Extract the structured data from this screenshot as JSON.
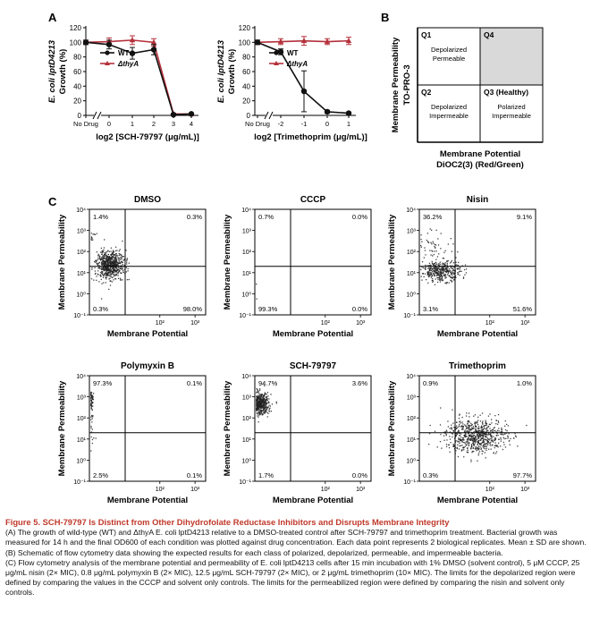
{
  "panel_labels": {
    "a": "A",
    "b": "B",
    "c": "C"
  },
  "chart_data": [
    {
      "type": "line",
      "panel": "A",
      "ylabel": "E. coli lptD4213 Growth (%)",
      "xlabel": "log2 [SCH-79797 (μg/mL)]",
      "x_tick_labels": [
        "No Drug",
        "0",
        "1",
        "2",
        "3",
        "4"
      ],
      "x": [
        "No Drug",
        0,
        1,
        2,
        3,
        4
      ],
      "ylim": [
        0,
        120
      ],
      "yticks": [
        0,
        20,
        40,
        60,
        80,
        100,
        120
      ],
      "axis_break": true,
      "series": [
        {
          "name": "WT",
          "color": "#111111",
          "values": [
            100,
            97,
            85,
            90,
            1,
            2
          ],
          "err": [
            3,
            6,
            8,
            7,
            1,
            1
          ]
        },
        {
          "name": "ΔthyA",
          "color": "#b5303a",
          "values": [
            100,
            101,
            103,
            100,
            2,
            2
          ],
          "err": [
            3,
            5,
            6,
            5,
            1,
            1
          ]
        }
      ]
    },
    {
      "type": "line",
      "panel": "A",
      "ylabel": "E. coli lptD4213 Growth (%)",
      "xlabel": "log2 [Trimethoprim (μg/mL)]",
      "x_tick_labels": [
        "No Drug",
        "-2",
        "-1",
        "0",
        "1"
      ],
      "x": [
        "No Drug",
        -2,
        -1,
        0,
        1
      ],
      "ylim": [
        0,
        120
      ],
      "yticks": [
        0,
        20,
        40,
        60,
        80,
        100,
        120
      ],
      "axis_break": true,
      "series": [
        {
          "name": "WT",
          "color": "#111111",
          "values": [
            100,
            87,
            33,
            5,
            3
          ],
          "err": [
            3,
            4,
            28,
            2,
            1
          ]
        },
        {
          "name": "ΔthyA",
          "color": "#b5303a",
          "values": [
            100,
            101,
            102,
            101,
            102
          ],
          "err": [
            3,
            4,
            6,
            4,
            5
          ]
        }
      ]
    },
    {
      "type": "scatter",
      "panel": "C",
      "title": "DMSO",
      "xlabel": "Membrane Potential",
      "ylabel": "Membrane Permeability",
      "quadrant_percent": {
        "Q1": "1.4%",
        "Q4": "0.3%",
        "Q2": "0.3%",
        "Q3": "98.0%"
      },
      "populations": [
        {
          "center": [
            3.8,
            25
          ],
          "spread": [
            1.6,
            2.2
          ],
          "count": 680
        },
        {
          "center": [
            1.0,
            600
          ],
          "spread": [
            1.25,
            1.7
          ],
          "count": 28
        }
      ]
    },
    {
      "type": "scatter",
      "panel": "C",
      "title": "CCCP",
      "xlabel": "Membrane Potential",
      "ylabel": "Membrane Permeability",
      "quadrant_percent": {
        "Q1": "0.7%",
        "Q4": "0.0%",
        "Q2": "99.3%",
        "Q3": "0.0%"
      },
      "populations": [
        {
          "center": [
            0.7,
            2.0
          ],
          "spread": [
            1.15,
            2.0
          ],
          "count": 520
        },
        {
          "center": [
            0.75,
            120
          ],
          "spread": [
            1.2,
            2.5
          ],
          "count": 12
        }
      ]
    },
    {
      "type": "scatter",
      "panel": "C",
      "title": "Nisin",
      "xlabel": "Membrane Potential",
      "ylabel": "Membrane Permeability",
      "quadrant_percent": {
        "Q1": "36.2%",
        "Q4": "9.1%",
        "Q2": "3.1%",
        "Q3": "51.6%"
      },
      "populations": [
        {
          "center": [
            0.65,
            80
          ],
          "spread": [
            1.15,
            2.5
          ],
          "count": 300
        },
        {
          "center": [
            4.0,
            12
          ],
          "spread": [
            1.9,
            1.7
          ],
          "count": 380
        },
        {
          "center": [
            2.0,
            220
          ],
          "spread": [
            2.2,
            2.4
          ],
          "count": 70
        }
      ]
    },
    {
      "type": "scatter",
      "panel": "C",
      "title": "Polymyxin B",
      "xlabel": "Membrane Potential",
      "ylabel": "Membrane Permeability",
      "quadrant_percent": {
        "Q1": "97.3%",
        "Q4": "0.1%",
        "Q2": "2.5%",
        "Q3": "0.1%"
      },
      "populations": [
        {
          "center": [
            0.9,
            900
          ],
          "spread": [
            1.15,
            1.5
          ],
          "count": 300
        },
        {
          "center": [
            0.9,
            150
          ],
          "spread": [
            1.15,
            2.2
          ],
          "count": 140
        },
        {
          "center": [
            1.0,
            10
          ],
          "spread": [
            1.2,
            1.6
          ],
          "count": 15
        }
      ]
    },
    {
      "type": "scatter",
      "panel": "C",
      "title": "SCH-79797",
      "xlabel": "Membrane Potential",
      "ylabel": "Membrane Permeability",
      "quadrant_percent": {
        "Q1": "94.7%",
        "Q4": "3.6%",
        "Q2": "1.7%",
        "Q3": "0.0%"
      },
      "populations": [
        {
          "center": [
            1.2,
            500
          ],
          "spread": [
            1.4,
            1.8
          ],
          "count": 620
        },
        {
          "center": [
            0.45,
            500
          ],
          "spread": [
            1.3,
            2.0
          ],
          "count": 30
        },
        {
          "center": [
            2.0,
            400
          ],
          "spread": [
            1.2,
            1.5
          ],
          "count": 30
        }
      ]
    },
    {
      "type": "scatter",
      "panel": "C",
      "title": "Trimethoprim",
      "xlabel": "Membrane Potential",
      "ylabel": "Membrane Permeability",
      "quadrant_percent": {
        "Q1": "0.9%",
        "Q4": "1.0%",
        "Q2": "0.3%",
        "Q3": "97.7%"
      },
      "populations": [
        {
          "center": [
            40,
            15
          ],
          "spread": [
            2.7,
            2.6
          ],
          "count": 700
        },
        {
          "center": [
            0.6,
            900
          ],
          "spread": [
            1.15,
            1.6
          ],
          "count": 16
        }
      ]
    }
  ],
  "schematic": {
    "y_title_1": "Membrane Permeability",
    "y_title_2": "TO-PRO-3",
    "x_title_1": "Membrane Potential",
    "x_title_2": "DiOC2(3) (Red/Green)",
    "quadrants": [
      {
        "id": "Q1",
        "label": "Q1",
        "desc_1": "Depolarized",
        "desc_2": "Permeable",
        "fill": "#ffffff"
      },
      {
        "id": "Q4",
        "label": "Q4",
        "desc_1": "",
        "desc_2": "",
        "fill": "#d9d9d9"
      },
      {
        "id": "Q2",
        "label": "Q2",
        "desc_1": "Depolarized",
        "desc_2": "Impermeable",
        "fill": "#ffffff"
      },
      {
        "id": "Q3",
        "label": "Q3 (Healthy)",
        "desc_1": "Polarized",
        "desc_2": "Impermeable",
        "fill": "#ffffff"
      }
    ]
  },
  "flow_axes": {
    "x_ticks": [
      "10²",
      "10³"
    ],
    "y_ticks": [
      "10⁻¹",
      "10⁰",
      "10¹",
      "10²",
      "10³",
      "10⁴"
    ]
  },
  "caption": {
    "title": "Figure 5. SCH-79797 Is Distinct from Other Dihydrofolate Reductase Inhibitors and Disrupts Membrane Integrity",
    "a": "(A) The growth of wild-type (WT) and ΔthyA E. coli lptD4213 relative to a DMSO-treated control after SCH-79797 and trimethoprim treatment. Bacterial growth was measured for 14 h and the final OD600 of each condition was plotted against drug concentration. Each data point represents 2 biological replicates. Mean ± SD are shown.",
    "b": "(B) Schematic of flow cytometry data showing the expected results for each class of polarized, depolarized, permeable, and impermeable bacteria.",
    "c": "(C) Flow cytometry analysis of the membrane potential and permeability of E. coli lptD4213 cells after 15 min incubation with 1% DMSO (solvent control), 5 μM CCCP, 25 μg/mL nisin (2× MIC), 0.8 μg/mL polymyxin B (2× MIC), 12.5 μg/mL SCH-79797 (2× MIC), or 2 μg/mL trimethoprim (10× MIC). The limits for the depolarized region were defined by comparing the values in the CCCP and solvent only controls. The limits for the permeabilized region were defined by comparing the nisin and solvent only controls."
  }
}
